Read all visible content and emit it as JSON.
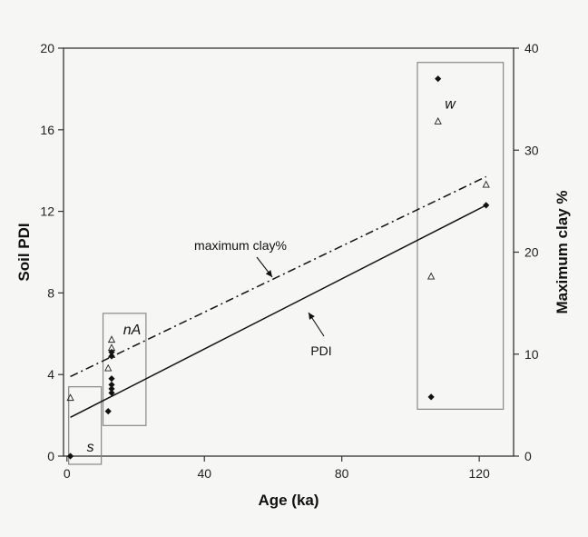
{
  "chart_data": {
    "type": "scatter",
    "xlabel": "Age (ka)",
    "ylabel": "Soil PDI",
    "y2label": "Maximum clay %",
    "xlim": [
      -1,
      130
    ],
    "ylim": [
      0,
      20
    ],
    "y2lim": [
      0,
      40
    ],
    "x_ticks": [
      "0",
      "40",
      "80",
      "120"
    ],
    "y_ticks": [
      "0",
      "4",
      "8",
      "12",
      "16",
      "20"
    ],
    "y2_ticks": [
      "0",
      "10",
      "20",
      "30",
      "40"
    ],
    "grid": false,
    "series": [
      {
        "marker": "filled-diamond",
        "axis": "left",
        "x": [
          1,
          12,
          13,
          13,
          13,
          13,
          13,
          13,
          106,
          108,
          122
        ],
        "y": [
          0.0,
          2.2,
          3.1,
          3.3,
          3.5,
          3.8,
          4.9,
          5.1,
          2.9,
          18.5,
          12.3
        ]
      },
      {
        "marker": "open-triangle",
        "axis": "right",
        "x": [
          1,
          12,
          13,
          13,
          13,
          106,
          108,
          122
        ],
        "y": [
          5.7,
          8.6,
          9.9,
          10.6,
          11.4,
          17.6,
          32.8,
          26.6
        ]
      }
    ],
    "lines": [
      {
        "label": "PDI",
        "style": "solid",
        "axis": "left",
        "x": [
          1,
          122
        ],
        "y": [
          1.9,
          12.3
        ]
      },
      {
        "label": "maximum clay%",
        "style": "dash-dot",
        "axis": "right",
        "x": [
          1,
          122
        ],
        "y": [
          7.8,
          27.4
        ]
      }
    ],
    "groups": [
      {
        "label": "s",
        "x_range": [
          0.5,
          10
        ],
        "y_range": [
          -0.4,
          3.4
        ]
      },
      {
        "label": "nA",
        "x_range": [
          10.5,
          23
        ],
        "y_range": [
          1.5,
          7.0
        ]
      },
      {
        "label": "w",
        "x_range": [
          102,
          127
        ],
        "y_range": [
          2.3,
          19.3
        ]
      }
    ],
    "annotations": [
      {
        "text": "maximum clay%",
        "points_to": "dash-dot line"
      },
      {
        "text": "PDI",
        "points_to": "solid line"
      }
    ]
  }
}
